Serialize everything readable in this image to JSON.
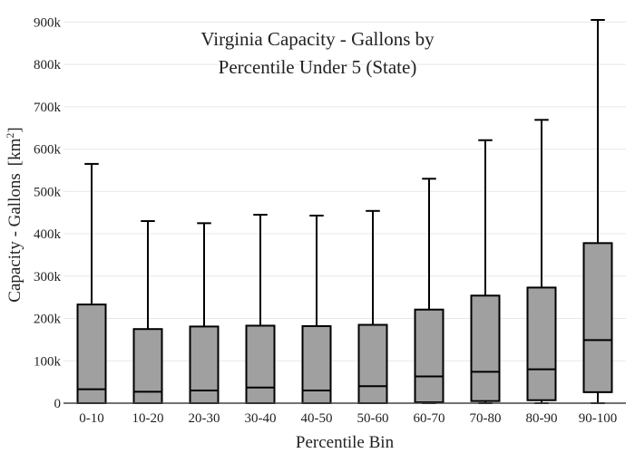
{
  "chart_data": {
    "type": "box",
    "title_lines": [
      "Virginia Capacity - Gallons by",
      "Percentile Under 5 (State)"
    ],
    "xlabel": "Percentile Bin",
    "ylabel": "Capacity - Gallons",
    "ylabel_unit_base": "[km",
    "ylabel_unit_sup": "2",
    "ylabel_unit_close": "]",
    "ylim": [
      0,
      920000
    ],
    "yticks": [
      0,
      100000,
      200000,
      300000,
      400000,
      500000,
      600000,
      700000,
      800000,
      900000
    ],
    "ytick_labels": [
      "0",
      "100k",
      "200k",
      "300k",
      "400k",
      "500k",
      "600k",
      "700k",
      "800k",
      "900k"
    ],
    "grid": true,
    "box_color": "#a0a0a0",
    "line_color": "#000000",
    "categories": [
      "0-10",
      "10-20",
      "20-30",
      "30-40",
      "40-50",
      "50-60",
      "60-70",
      "70-80",
      "80-90",
      "90-100"
    ],
    "boxes": [
      {
        "min": 0,
        "q1": 0,
        "median": 33000,
        "q3": 233000,
        "max": 565000
      },
      {
        "min": 0,
        "q1": 0,
        "median": 27000,
        "q3": 175000,
        "max": 430000
      },
      {
        "min": 0,
        "q1": 0,
        "median": 30000,
        "q3": 181000,
        "max": 425000
      },
      {
        "min": 0,
        "q1": 0,
        "median": 37000,
        "q3": 183000,
        "max": 445000
      },
      {
        "min": 0,
        "q1": 0,
        "median": 30000,
        "q3": 182000,
        "max": 443000
      },
      {
        "min": 0,
        "q1": 0,
        "median": 40000,
        "q3": 185000,
        "max": 454000
      },
      {
        "min": 0,
        "q1": 2000,
        "median": 63000,
        "q3": 221000,
        "max": 530000
      },
      {
        "min": 0,
        "q1": 5000,
        "median": 74000,
        "q3": 254000,
        "max": 621000
      },
      {
        "min": 0,
        "q1": 7000,
        "median": 80000,
        "q3": 273000,
        "max": 669000
      },
      {
        "min": 0,
        "q1": 26000,
        "median": 149000,
        "q3": 378000,
        "max": 905000
      }
    ]
  }
}
